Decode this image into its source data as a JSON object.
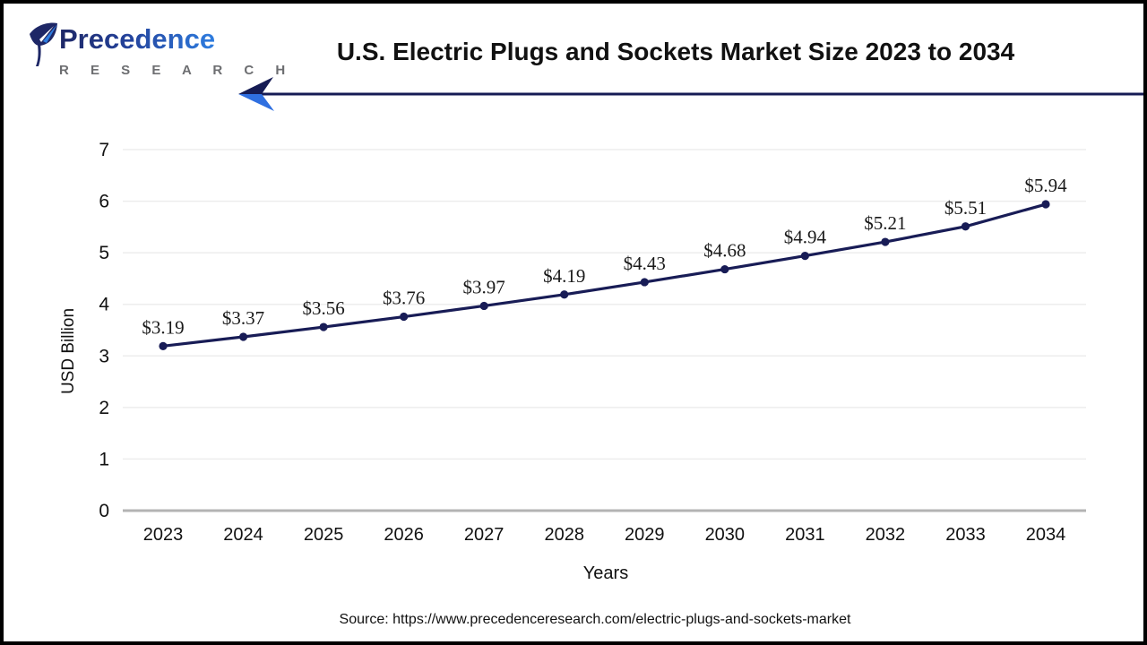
{
  "header": {
    "brand_name": "Precedence",
    "brand_sub": "R E S E A R C H",
    "title": "U.S. Electric Plugs and Sockets Market Size 2023 to 2034"
  },
  "footer": {
    "source": "Source: https://www.precedenceresearch.com/electric-plugs-and-sockets-market"
  },
  "colors": {
    "line": "#181c56",
    "point": "#181c56",
    "accent_blue": "#2f6fe0",
    "grid": "#ededed",
    "zero_axis": "#b3b3b3",
    "text": "#111111",
    "brand_gray": "#6d6e71"
  },
  "chart_data": {
    "type": "line",
    "title": "U.S. Electric Plugs and Sockets Market Size 2023 to 2034",
    "x": [
      "2023",
      "2024",
      "2025",
      "2026",
      "2027",
      "2028",
      "2029",
      "2030",
      "2031",
      "2032",
      "2033",
      "2034"
    ],
    "values": [
      3.19,
      3.37,
      3.56,
      3.76,
      3.97,
      4.19,
      4.43,
      4.68,
      4.94,
      5.21,
      5.51,
      5.94
    ],
    "point_labels": [
      "$3.19",
      "$3.37",
      "$3.56",
      "$3.76",
      "$3.97",
      "$4.19",
      "$4.43",
      "$4.68",
      "$4.94",
      "$5.21",
      "$5.51",
      "$5.94"
    ],
    "xlabel": "Years",
    "ylabel": "USD Billion",
    "ylim": [
      0,
      7
    ],
    "yticks": [
      0,
      1,
      2,
      3,
      4,
      5,
      6,
      7
    ],
    "grid": true,
    "legend": "none",
    "series_name": "U.S. Electric Plugs and Sockets Market Size"
  }
}
